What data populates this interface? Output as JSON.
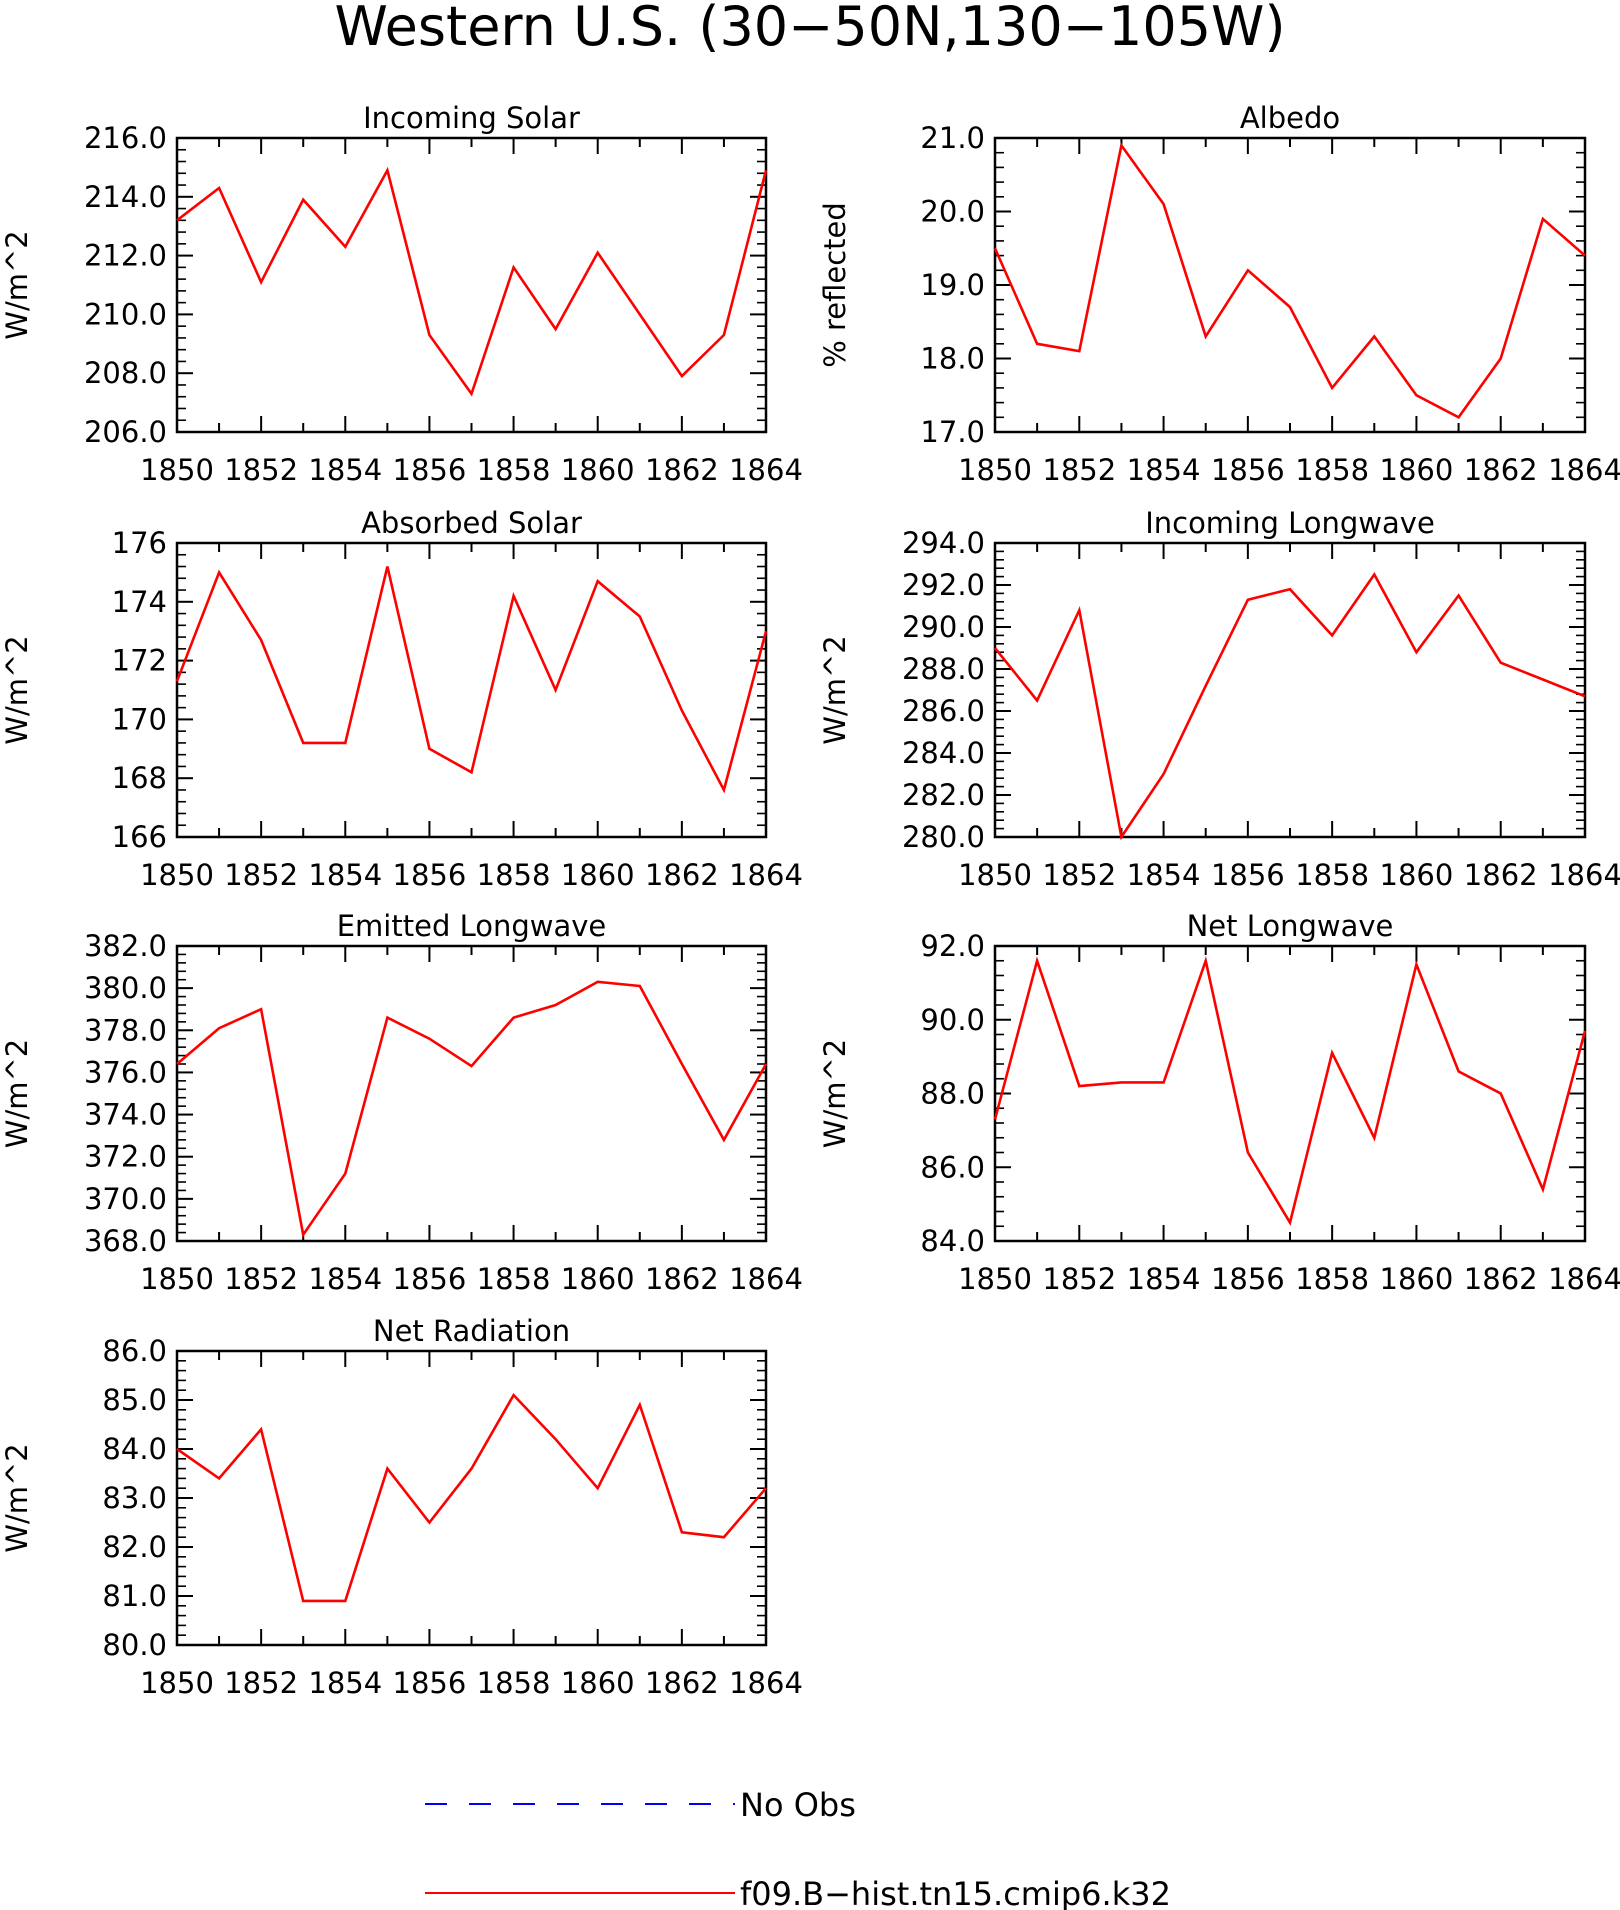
{
  "figure": {
    "title": "Western U.S. (30−50N,130−105W)"
  },
  "legend": {
    "items": [
      {
        "label": "No Obs",
        "color": "#0000ff",
        "dash": true
      },
      {
        "label": "f09.B−hist.tn15.cmip6.k32",
        "color": "#ff0000",
        "dash": false
      }
    ]
  },
  "colors": {
    "series": "#ff0000",
    "axis": "#000000"
  },
  "chart_data": [
    {
      "type": "line",
      "title": "Incoming Solar",
      "ylabel": "W/m^2",
      "xlim": [
        1850,
        1864
      ],
      "ylim": [
        206,
        216
      ],
      "xticks": [
        "1850",
        "1852",
        "1854",
        "1856",
        "1858",
        "1860",
        "1862",
        "1864"
      ],
      "yticks": [
        "206.0",
        "208.0",
        "210.0",
        "212.0",
        "214.0",
        "216.0"
      ],
      "x": [
        1850,
        1851,
        1852,
        1853,
        1854,
        1855,
        1856,
        1857,
        1858,
        1859,
        1860,
        1861,
        1862,
        1863,
        1864
      ],
      "series": [
        {
          "name": "f09.B−hist.tn15.cmip6.k32",
          "values": [
            213.2,
            214.3,
            211.1,
            213.9,
            212.3,
            214.9,
            209.3,
            207.3,
            211.6,
            209.5,
            212.1,
            210.0,
            207.9,
            209.3,
            214.9
          ]
        }
      ]
    },
    {
      "type": "line",
      "title": "Albedo",
      "ylabel": "% reflected",
      "xlim": [
        1850,
        1864
      ],
      "ylim": [
        17,
        21
      ],
      "xticks": [
        "1850",
        "1852",
        "1854",
        "1856",
        "1858",
        "1860",
        "1862",
        "1864"
      ],
      "yticks": [
        "17.0",
        "18.0",
        "19.0",
        "20.0",
        "21.0"
      ],
      "x": [
        1850,
        1851,
        1852,
        1853,
        1854,
        1855,
        1856,
        1857,
        1858,
        1859,
        1860,
        1861,
        1862,
        1863,
        1864
      ],
      "series": [
        {
          "name": "f09.B−hist.tn15.cmip6.k32",
          "values": [
            19.5,
            18.2,
            18.1,
            20.9,
            20.1,
            18.3,
            19.2,
            18.7,
            17.6,
            18.3,
            17.5,
            17.2,
            18.0,
            19.9,
            19.4
          ]
        }
      ]
    },
    {
      "type": "line",
      "title": "Absorbed Solar",
      "ylabel": "W/m^2",
      "xlim": [
        1850,
        1864
      ],
      "ylim": [
        166,
        176
      ],
      "xticks": [
        "1850",
        "1852",
        "1854",
        "1856",
        "1858",
        "1860",
        "1862",
        "1864"
      ],
      "yticks": [
        "166",
        "168",
        "170",
        "172",
        "174",
        "176"
      ],
      "x": [
        1850,
        1851,
        1852,
        1853,
        1854,
        1855,
        1856,
        1857,
        1858,
        1859,
        1860,
        1861,
        1862,
        1863,
        1864
      ],
      "series": [
        {
          "name": "f09.B−hist.tn15.cmip6.k32",
          "values": [
            171.3,
            175.0,
            172.7,
            169.2,
            169.2,
            175.2,
            169.0,
            168.2,
            174.2,
            171.0,
            174.7,
            173.5,
            170.3,
            167.6,
            173.0
          ]
        }
      ]
    },
    {
      "type": "line",
      "title": "Incoming Longwave",
      "ylabel": "W/m^2",
      "xlim": [
        1850,
        1864
      ],
      "ylim": [
        280,
        294
      ],
      "xticks": [
        "1850",
        "1852",
        "1854",
        "1856",
        "1858",
        "1860",
        "1862",
        "1864"
      ],
      "yticks": [
        "280.0",
        "282.0",
        "284.0",
        "286.0",
        "288.0",
        "290.0",
        "292.0",
        "294.0"
      ],
      "x": [
        1850,
        1851,
        1852,
        1853,
        1854,
        1855,
        1856,
        1857,
        1858,
        1859,
        1860,
        1861,
        1862,
        1863,
        1864
      ],
      "series": [
        {
          "name": "f09.B−hist.tn15.cmip6.k32",
          "values": [
            289.0,
            286.5,
            290.8,
            280.0,
            283.0,
            287.2,
            291.3,
            291.8,
            289.6,
            292.5,
            288.8,
            291.5,
            288.3,
            287.5,
            286.7
          ]
        }
      ]
    },
    {
      "type": "line",
      "title": "Emitted Longwave",
      "ylabel": "W/m^2",
      "xlim": [
        1850,
        1864
      ],
      "ylim": [
        368,
        382
      ],
      "xticks": [
        "1850",
        "1852",
        "1854",
        "1856",
        "1858",
        "1860",
        "1862",
        "1864"
      ],
      "yticks": [
        "368.0",
        "370.0",
        "372.0",
        "374.0",
        "376.0",
        "378.0",
        "380.0",
        "382.0"
      ],
      "x": [
        1850,
        1851,
        1852,
        1853,
        1854,
        1855,
        1856,
        1857,
        1858,
        1859,
        1860,
        1861,
        1862,
        1863,
        1864
      ],
      "series": [
        {
          "name": "f09.B−hist.tn15.cmip6.k32",
          "values": [
            376.4,
            378.1,
            379.0,
            368.3,
            371.2,
            378.6,
            377.6,
            376.3,
            378.6,
            379.2,
            380.3,
            380.1,
            376.4,
            372.8,
            376.4
          ]
        }
      ]
    },
    {
      "type": "line",
      "title": "Net Longwave",
      "ylabel": "W/m^2",
      "xlim": [
        1850,
        1864
      ],
      "ylim": [
        84,
        92
      ],
      "xticks": [
        "1850",
        "1852",
        "1854",
        "1856",
        "1858",
        "1860",
        "1862",
        "1864"
      ],
      "yticks": [
        "84.0",
        "86.0",
        "88.0",
        "90.0",
        "92.0"
      ],
      "x": [
        1850,
        1851,
        1852,
        1853,
        1854,
        1855,
        1856,
        1857,
        1858,
        1859,
        1860,
        1861,
        1862,
        1863,
        1864
      ],
      "series": [
        {
          "name": "f09.B−hist.tn15.cmip6.k32",
          "values": [
            87.3,
            91.6,
            88.2,
            88.3,
            88.3,
            91.6,
            86.4,
            84.5,
            89.1,
            86.8,
            91.5,
            88.6,
            88.0,
            85.4,
            89.7
          ]
        }
      ]
    },
    {
      "type": "line",
      "title": "Net Radiation",
      "ylabel": "W/m^2",
      "xlim": [
        1850,
        1864
      ],
      "ylim": [
        80,
        86
      ],
      "xticks": [
        "1850",
        "1852",
        "1854",
        "1856",
        "1858",
        "1860",
        "1862",
        "1864"
      ],
      "yticks": [
        "80.0",
        "81.0",
        "82.0",
        "83.0",
        "84.0",
        "85.0",
        "86.0"
      ],
      "x": [
        1850,
        1851,
        1852,
        1853,
        1854,
        1855,
        1856,
        1857,
        1858,
        1859,
        1860,
        1861,
        1862,
        1863,
        1864
      ],
      "series": [
        {
          "name": "f09.B−hist.tn15.cmip6.k32",
          "values": [
            84.0,
            83.4,
            84.4,
            80.9,
            80.9,
            83.6,
            82.5,
            83.6,
            85.1,
            84.2,
            83.2,
            84.9,
            82.3,
            82.2,
            83.2
          ]
        }
      ]
    }
  ]
}
